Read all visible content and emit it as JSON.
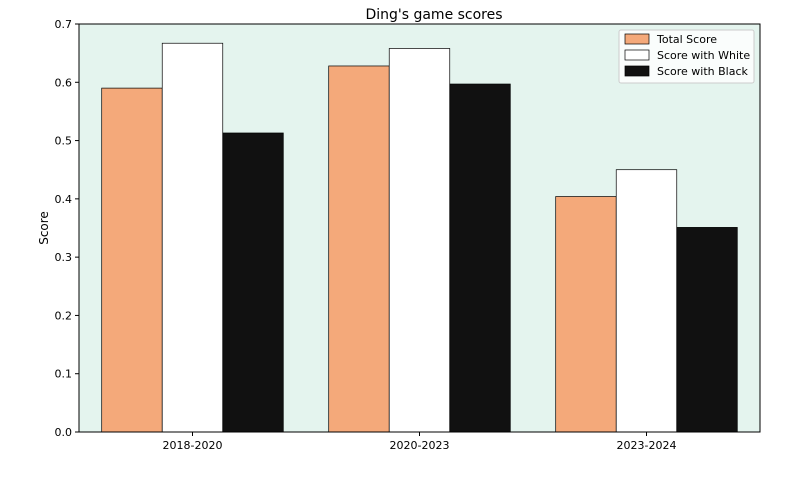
{
  "chart_data": {
    "type": "bar",
    "title": "Ding's game scores",
    "xlabel": "",
    "ylabel": "Score",
    "categories": [
      "2018-2020",
      "2020-2023",
      "2023-2024"
    ],
    "series": [
      {
        "name": "Total Score",
        "values": [
          0.59,
          0.628,
          0.404
        ],
        "color": "#f4a97a"
      },
      {
        "name": "Score with White",
        "values": [
          0.667,
          0.658,
          0.45
        ],
        "color": "#ffffff"
      },
      {
        "name": "Score with Black",
        "values": [
          0.513,
          0.597,
          0.351
        ],
        "color": "#111111"
      }
    ],
    "ylim": [
      0,
      0.7
    ],
    "yticks": [
      "0.0",
      "0.1",
      "0.2",
      "0.3",
      "0.4",
      "0.5",
      "0.6",
      "0.7"
    ],
    "plot_background": "#e4f4ee",
    "grid": false,
    "legend_position": "top-right"
  }
}
